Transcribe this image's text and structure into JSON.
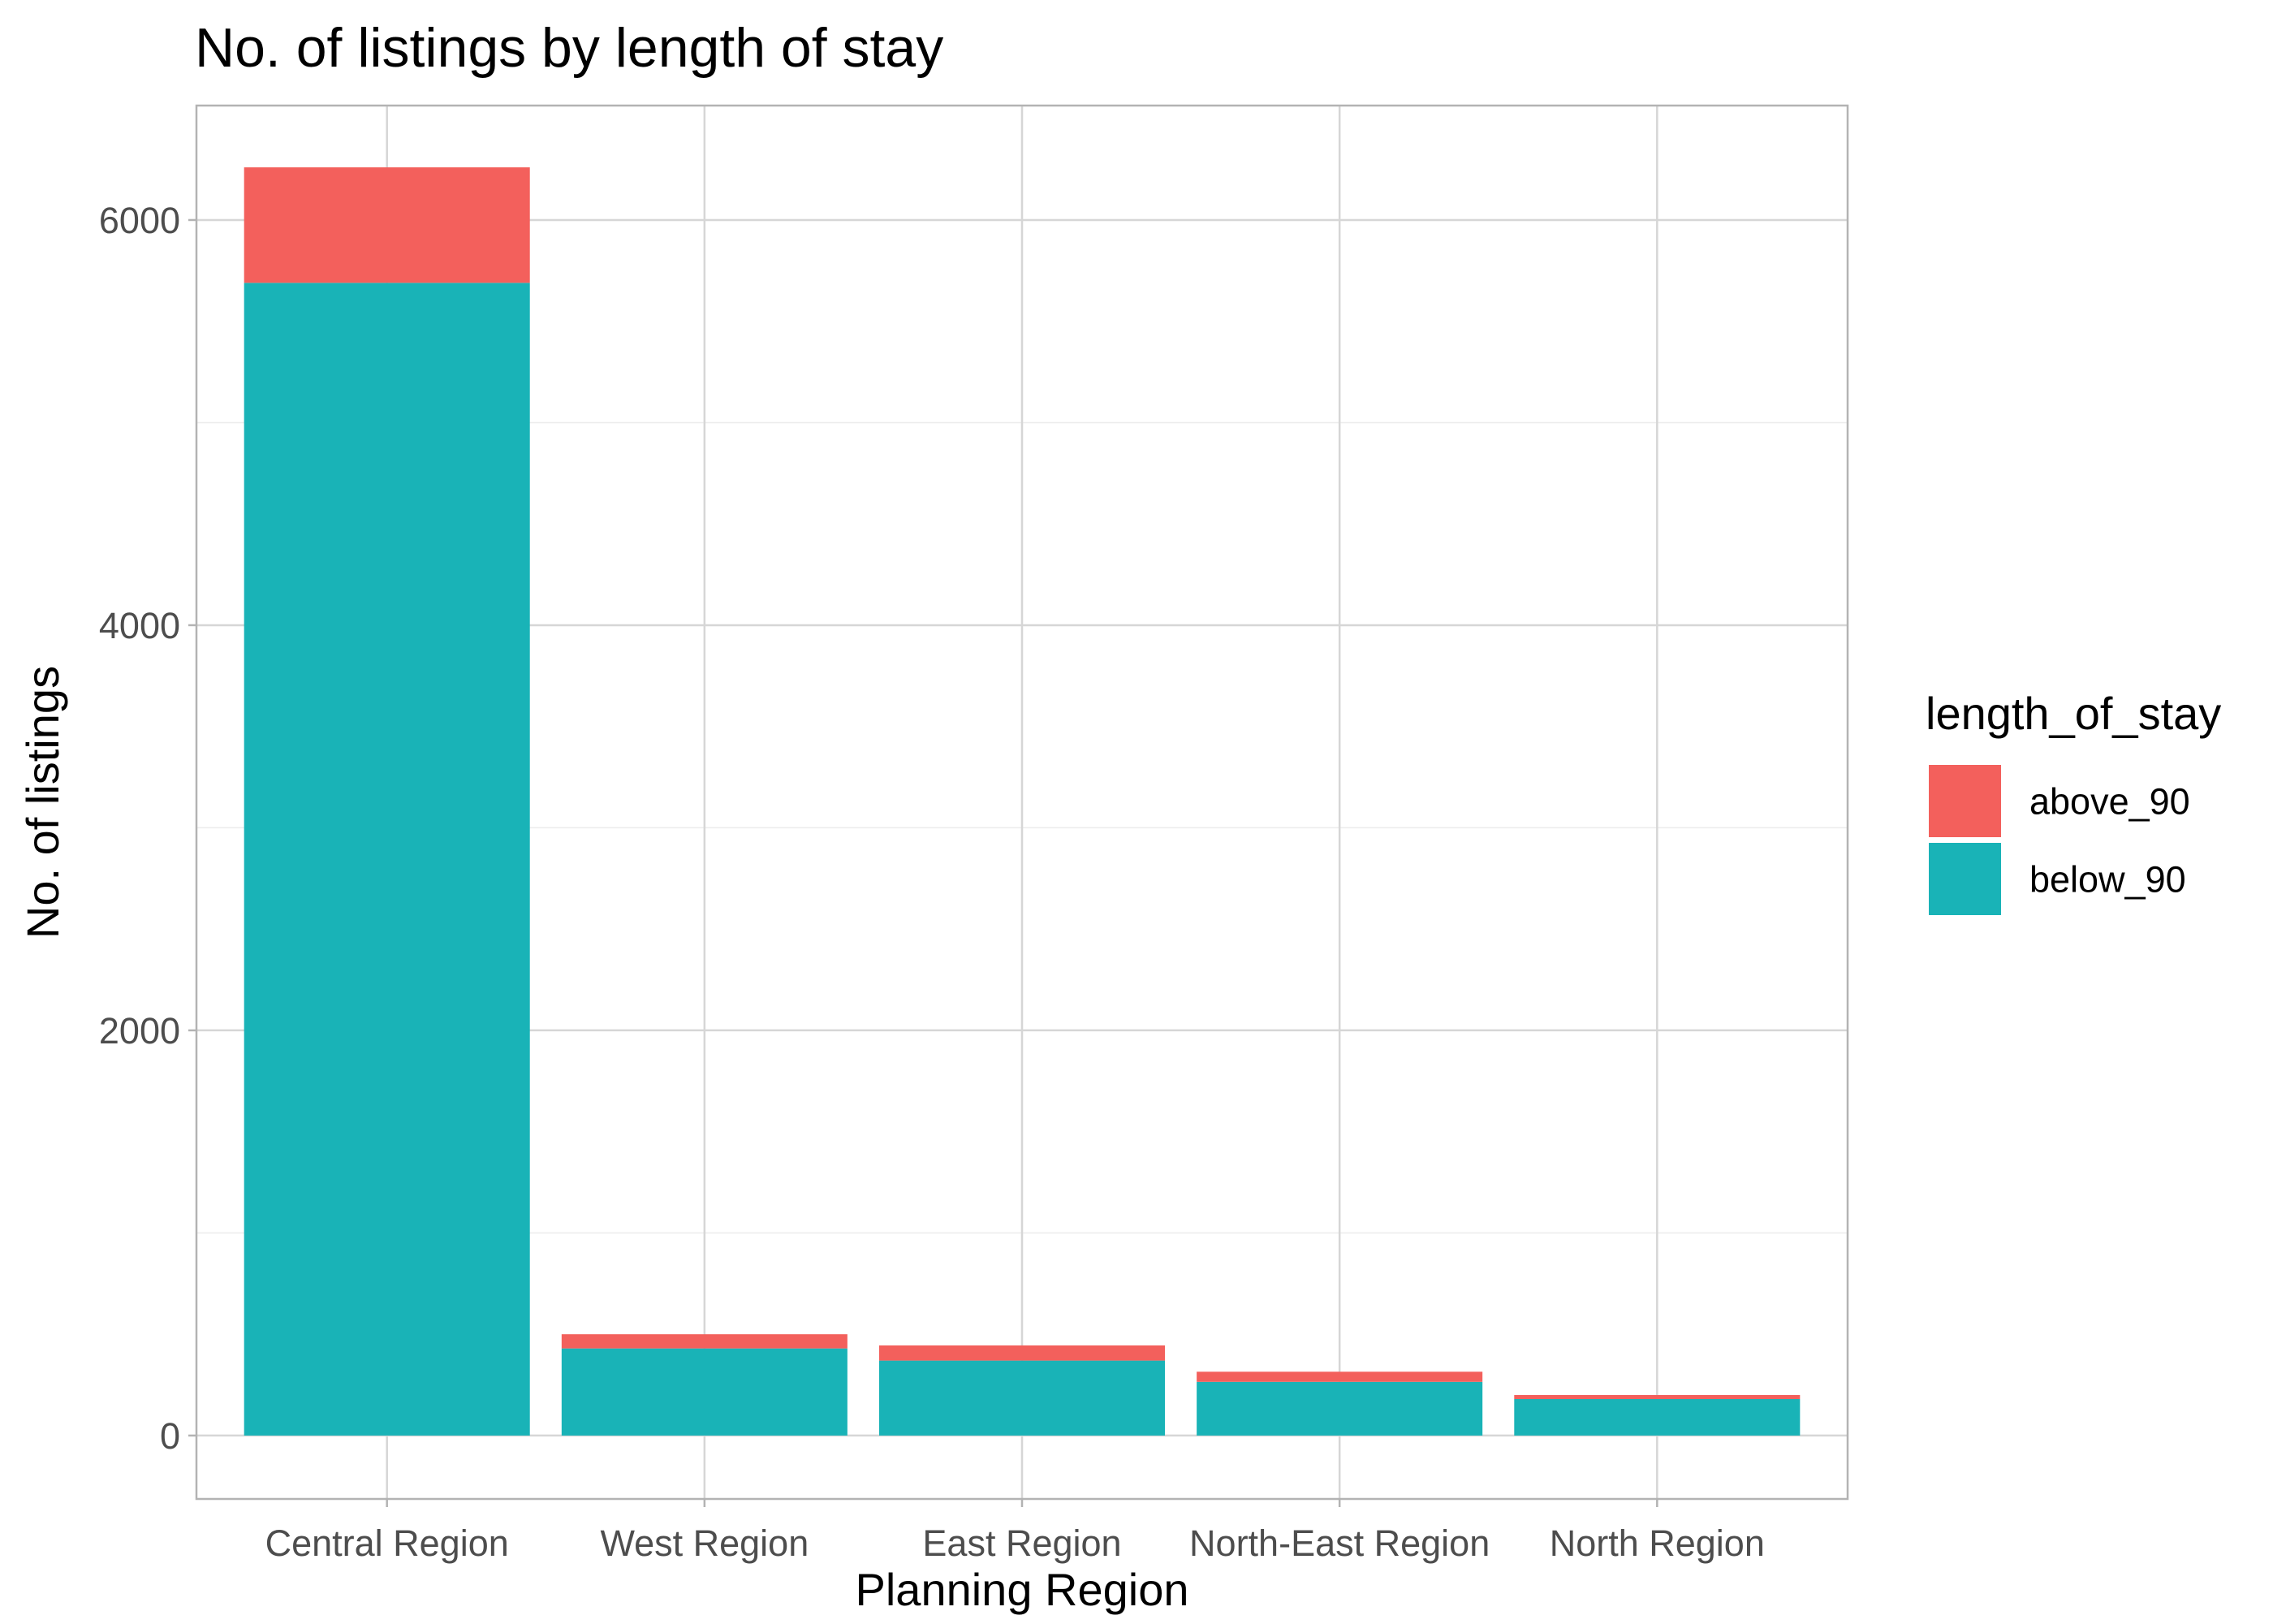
{
  "chart_data": {
    "type": "bar",
    "stacked": true,
    "title": "No. of listings by length of stay",
    "xlabel": "Planning Region",
    "ylabel": "No. of listings",
    "categories": [
      "Central Region",
      "West Region",
      "East Region",
      "North-East Region",
      "North Region"
    ],
    "series": [
      {
        "name": "below_90",
        "color": "#19B3B7",
        "values": [
          5690,
          430,
          370,
          265,
          180
        ]
      },
      {
        "name": "above_90",
        "color": "#F3605C",
        "values": [
          570,
          70,
          75,
          50,
          20
        ]
      }
    ],
    "yticks": [
      0,
      2000,
      4000,
      6000
    ],
    "yticks_labels": [
      "0",
      "2000",
      "4000",
      "6000"
    ],
    "ylim": [
      -313,
      6565
    ],
    "grid": true,
    "legend": {
      "title": "length_of_stay",
      "position": "right",
      "entries": [
        {
          "label": "above_90",
          "color": "#F3605C"
        },
        {
          "label": "below_90",
          "color": "#19B3B7"
        }
      ]
    }
  }
}
